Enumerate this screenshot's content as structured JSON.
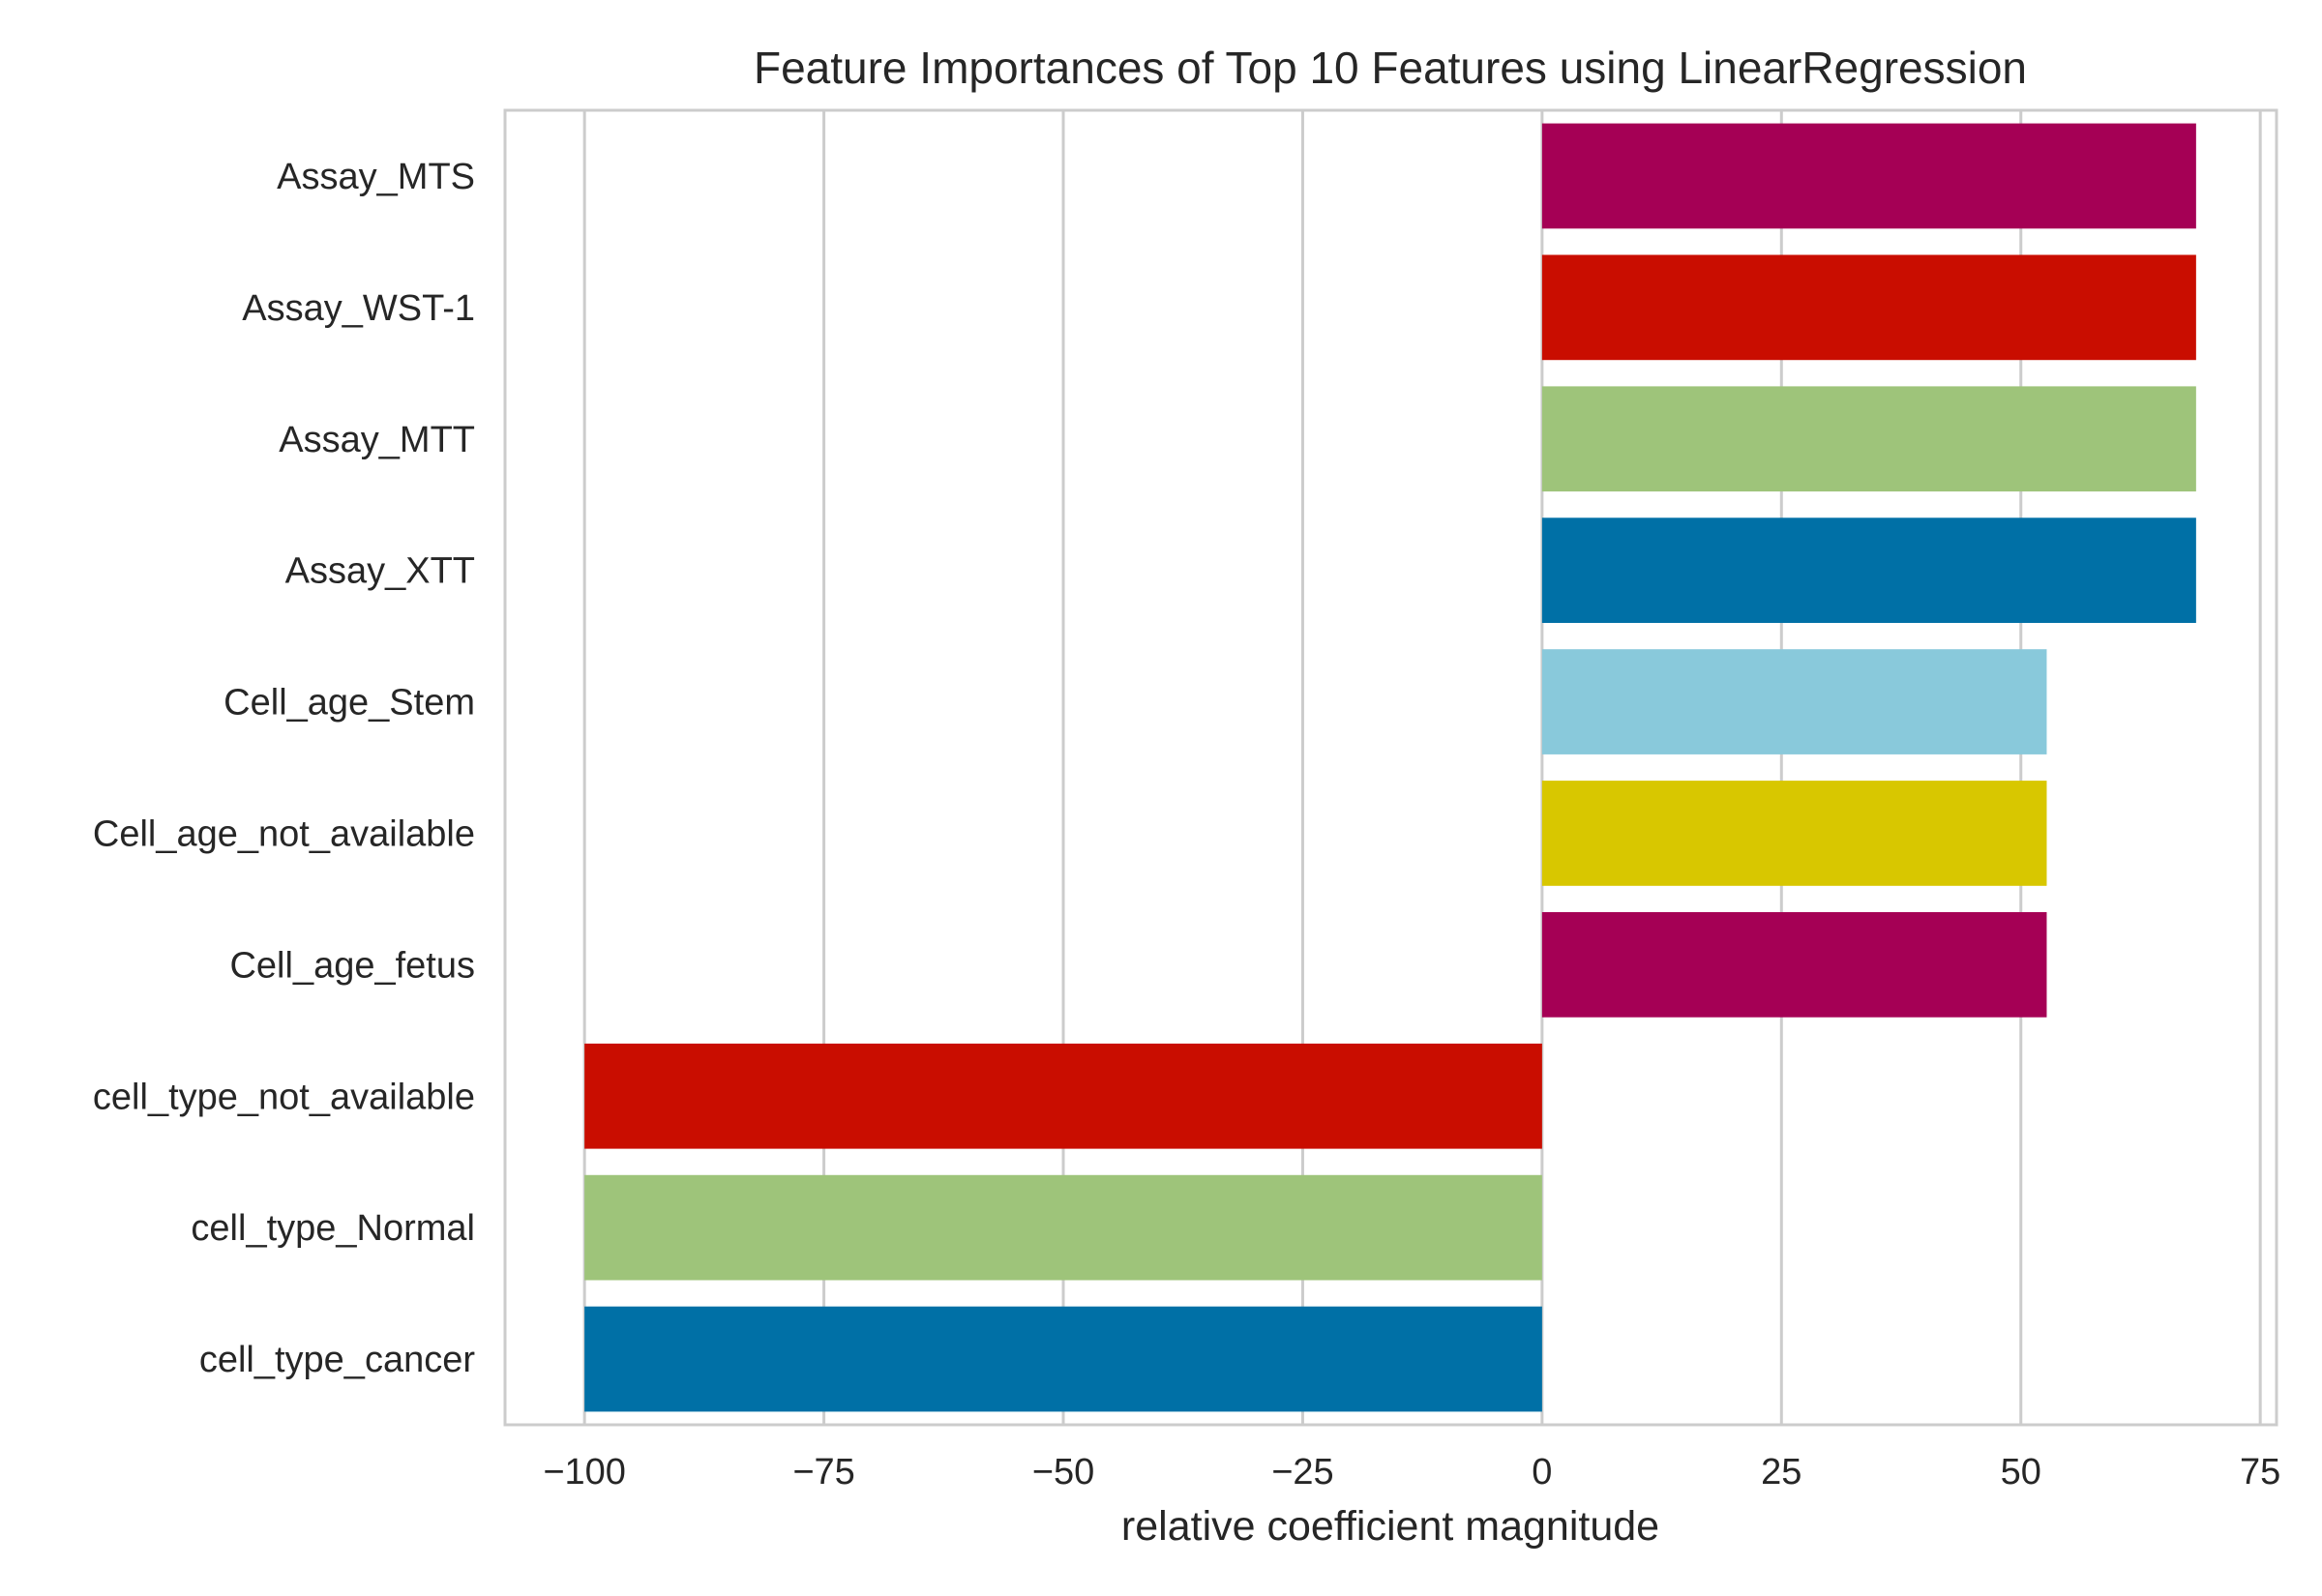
{
  "chart_data": {
    "type": "bar",
    "orientation": "horizontal",
    "title": "Feature Importances of Top 10 Features using LinearRegression",
    "xlabel": "relative coefficient magnitude",
    "ylabel": "",
    "xlim": [
      -108.3,
      76.7
    ],
    "xticks": [
      -100,
      -75,
      -50,
      -25,
      0,
      25,
      50,
      75
    ],
    "xtick_labels": [
      "−100",
      "−75",
      "−50",
      "−25",
      "0",
      "25",
      "50",
      "75"
    ],
    "grid": "vertical",
    "categories": [
      "Assay_MTS",
      "Assay_WST-1",
      "Assay_MTT",
      "Assay_XTT",
      "Cell_age_Stem",
      "Cell_age_not_available",
      "Cell_age_fetus",
      "cell_type_not_available",
      "cell_type_Normal",
      "cell_type_cancer"
    ],
    "values": [
      68.3,
      68.3,
      68.3,
      68.3,
      52.7,
      52.7,
      52.7,
      -100,
      -100,
      -100
    ],
    "colors": [
      "#a50055",
      "#c90d00",
      "#9ec47a",
      "#0070a6",
      "#89c9db",
      "#d8c700",
      "#a50055",
      "#c90d00",
      "#9ec47a",
      "#0070a6"
    ]
  }
}
